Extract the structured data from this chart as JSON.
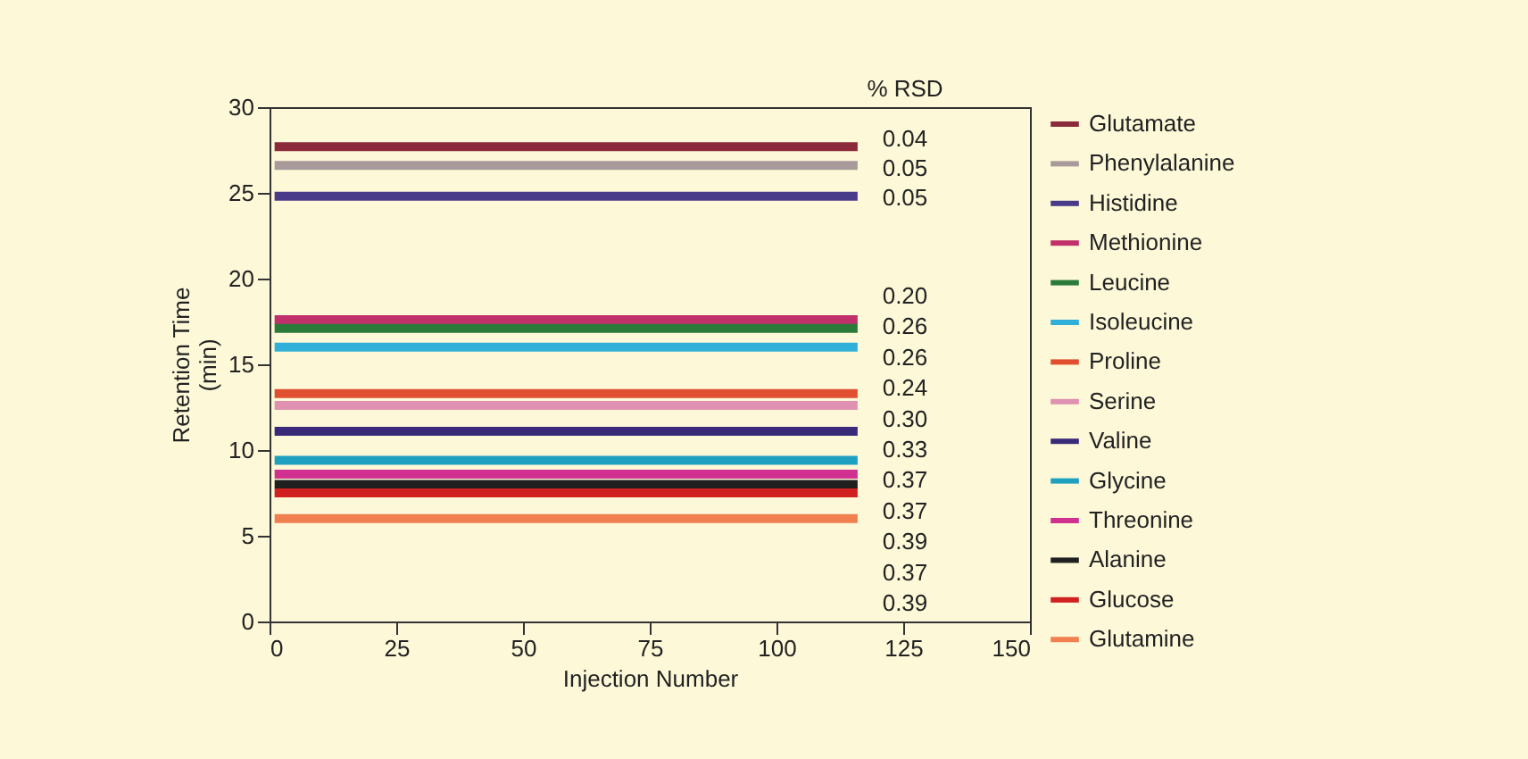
{
  "chart_data": {
    "type": "line",
    "xlabel": "Injection Number",
    "ylabel": "Retention Time (min)",
    "x": [
      1,
      116
    ],
    "xlim": [
      0,
      150
    ],
    "xticks": [
      0,
      25,
      50,
      75,
      100,
      125,
      150
    ],
    "ylim": [
      0,
      30
    ],
    "yticks": [
      0,
      5,
      10,
      15,
      20,
      25,
      30
    ],
    "series": [
      {
        "name": "Glutamate",
        "color": "#8b2a3a",
        "values": [
          27.7,
          27.7
        ]
      },
      {
        "name": "Phenylalanine",
        "color": "#a89a9a",
        "values": [
          26.6,
          26.6
        ]
      },
      {
        "name": "Histidine",
        "color": "#4a3a8a",
        "values": [
          24.8,
          24.8
        ]
      },
      {
        "name": "Methionine",
        "color": "#c0306a",
        "values": [
          17.6,
          17.6
        ]
      },
      {
        "name": "Leucine",
        "color": "#2a7a3a",
        "values": [
          17.1,
          17.1
        ]
      },
      {
        "name": "Isoleucine",
        "color": "#30b0d8",
        "values": [
          16.0,
          16.0
        ]
      },
      {
        "name": "Proline",
        "color": "#e05030",
        "values": [
          13.3,
          13.3
        ]
      },
      {
        "name": "Serine",
        "color": "#e090b0",
        "values": [
          12.6,
          12.6
        ]
      },
      {
        "name": "Valine",
        "color": "#3a2a7a",
        "values": [
          11.1,
          11.1
        ]
      },
      {
        "name": "Glycine",
        "color": "#20a0c0",
        "values": [
          9.4,
          9.4
        ]
      },
      {
        "name": "Threonine",
        "color": "#d03090",
        "values": [
          8.6,
          8.6
        ]
      },
      {
        "name": "Alanine",
        "color": "#202020",
        "values": [
          8.0,
          8.0
        ]
      },
      {
        "name": "Glucose",
        "color": "#d02020",
        "values": [
          7.5,
          7.5
        ]
      },
      {
        "name": "Glutamine",
        "color": "#f08050",
        "values": [
          6.0,
          6.0
        ]
      }
    ],
    "annotations": [
      "% RSD",
      "0.04",
      "0.05",
      "0.05",
      "0.20",
      "0.26",
      "0.26",
      "0.24",
      "0.30",
      "0.33",
      "0.37",
      "0.37",
      "0.39",
      "0.37",
      "0.39"
    ],
    "legend": "right",
    "marker": "none",
    "line_style": "solid",
    "grid": false
  }
}
